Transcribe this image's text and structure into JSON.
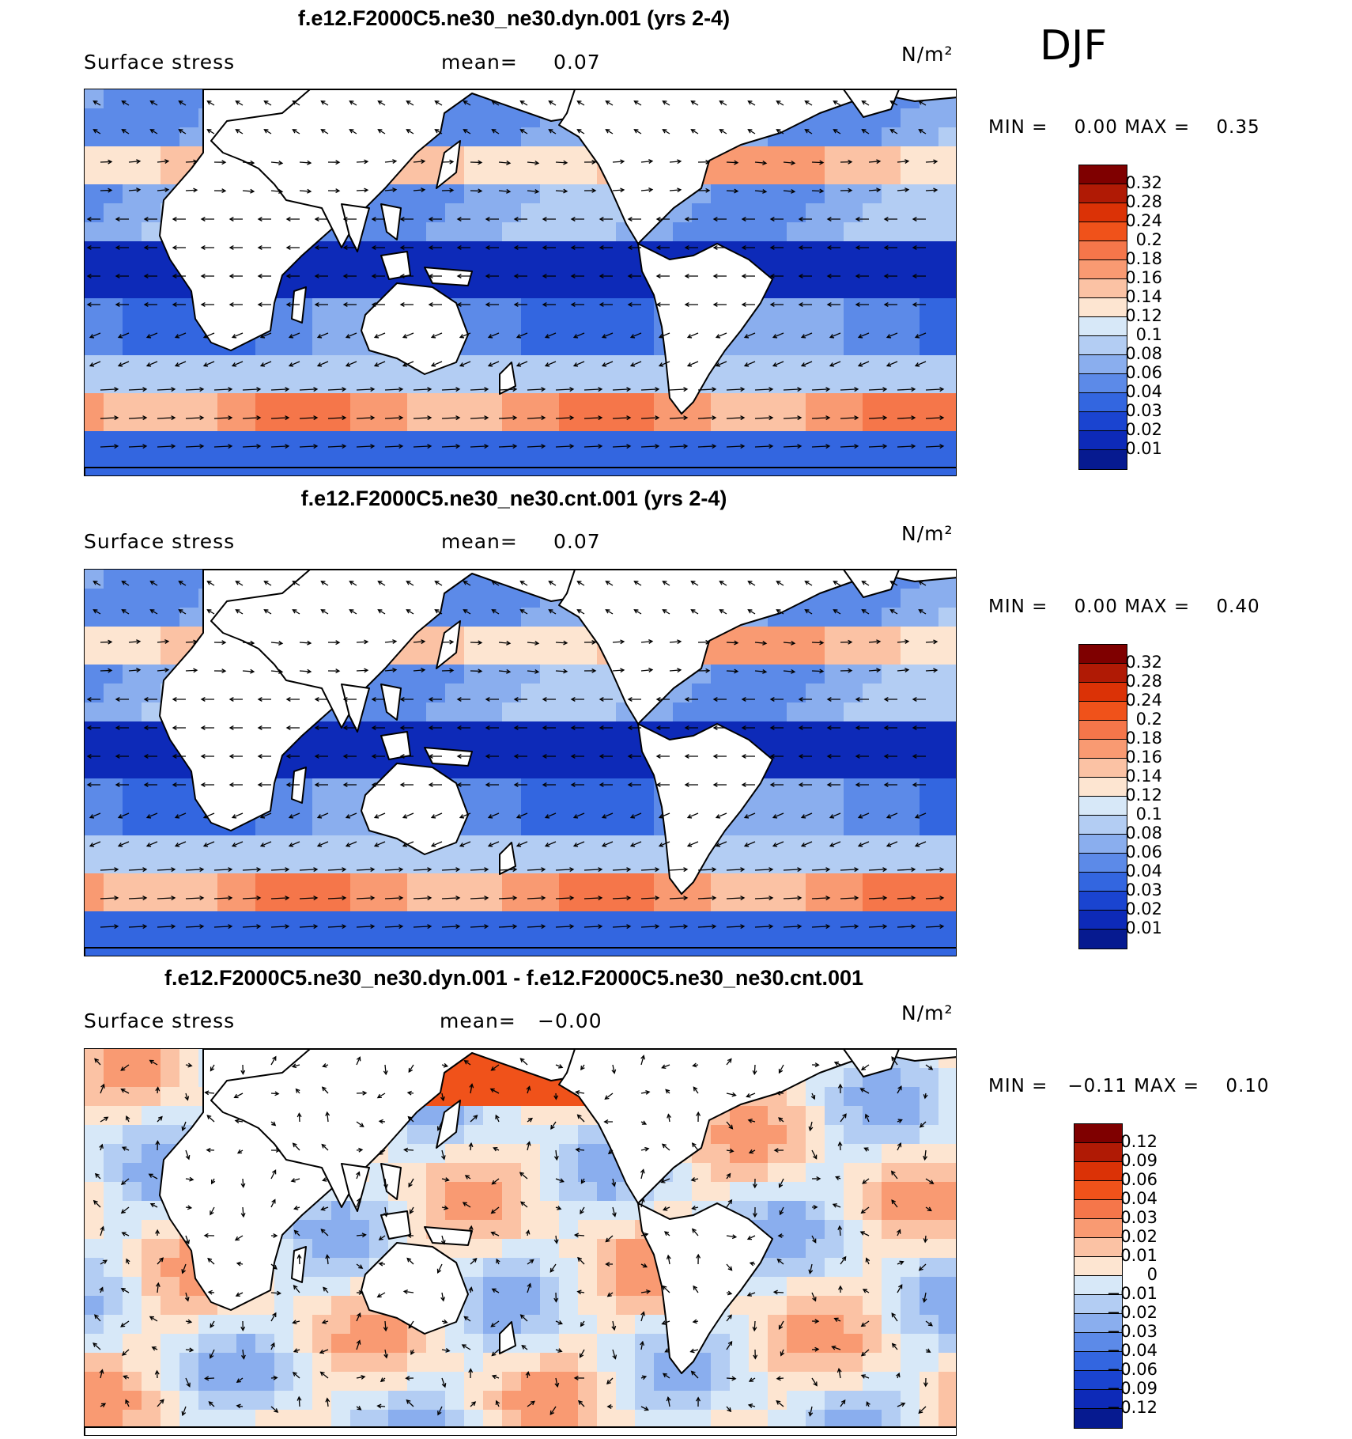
{
  "season": "DJF",
  "colors": {
    "land": "#ffffff",
    "coast": "#000000"
  },
  "panels": [
    {
      "title": "f.e12.F2000C5.ne30_ne30.dyn.001 (yrs 2-4)",
      "variable": "Surface stress",
      "mean_label": "mean=",
      "mean_value": "0.07",
      "units": "N/m²",
      "min_label": "MIN =",
      "min_value": "0.00",
      "max_label": "MAX =",
      "max_value": "0.35",
      "colorbar": {
        "labels": [
          "0.32",
          "0.28",
          "0.24",
          "0.2",
          "0.18",
          "0.16",
          "0.14",
          "0.12",
          "0.1",
          "0.08",
          "0.06",
          "0.04",
          "0.03",
          "0.02",
          "0.01"
        ],
        "colors": [
          "#7f0000",
          "#b01a05",
          "#db3206",
          "#f0521a",
          "#f5764a",
          "#f99a72",
          "#fbc2a4",
          "#fde5d1",
          "#d7e8f8",
          "#b3cdf3",
          "#8aaeee",
          "#5c8ae8",
          "#3366e0",
          "#1a44d0",
          "#0d2ab8",
          "#061a90"
        ]
      },
      "scheme": "full"
    },
    {
      "title": "f.e12.F2000C5.ne30_ne30.cnt.001 (yrs 2-4)",
      "variable": "Surface stress",
      "mean_label": "mean=",
      "mean_value": "0.07",
      "units": "N/m²",
      "min_label": "MIN =",
      "min_value": "0.00",
      "max_label": "MAX =",
      "max_value": "0.40",
      "colorbar": {
        "labels": [
          "0.32",
          "0.28",
          "0.24",
          "0.2",
          "0.18",
          "0.16",
          "0.14",
          "0.12",
          "0.1",
          "0.08",
          "0.06",
          "0.04",
          "0.03",
          "0.02",
          "0.01"
        ],
        "colors": [
          "#7f0000",
          "#b01a05",
          "#db3206",
          "#f0521a",
          "#f5764a",
          "#f99a72",
          "#fbc2a4",
          "#fde5d1",
          "#d7e8f8",
          "#b3cdf3",
          "#8aaeee",
          "#5c8ae8",
          "#3366e0",
          "#1a44d0",
          "#0d2ab8",
          "#061a90"
        ]
      },
      "scheme": "full"
    },
    {
      "title": "f.e12.F2000C5.ne30_ne30.dyn.001 - f.e12.F2000C5.ne30_ne30.cnt.001",
      "variable": "Surface stress",
      "mean_label": "mean=",
      "mean_value": "−0.00",
      "units": "N/m²",
      "min_label": "MIN =",
      "min_value": "−0.11",
      "max_label": "MAX =",
      "max_value": "0.10",
      "colorbar": {
        "labels": [
          "0.12",
          "0.09",
          "0.06",
          "0.04",
          "0.03",
          "0.02",
          "0.01",
          "0",
          "−0.01",
          "−0.02",
          "−0.03",
          "−0.04",
          "−0.06",
          "−0.09",
          "−0.12"
        ],
        "colors": [
          "#7f0000",
          "#b01a05",
          "#db3206",
          "#f0521a",
          "#f5764a",
          "#f99a72",
          "#fbc2a4",
          "#fde5d1",
          "#d7e8f8",
          "#b3cdf3",
          "#8aaeee",
          "#5c8ae8",
          "#3366e0",
          "#1a44d0",
          "#0d2ab8",
          "#061a90"
        ]
      },
      "scheme": "diff"
    }
  ]
}
